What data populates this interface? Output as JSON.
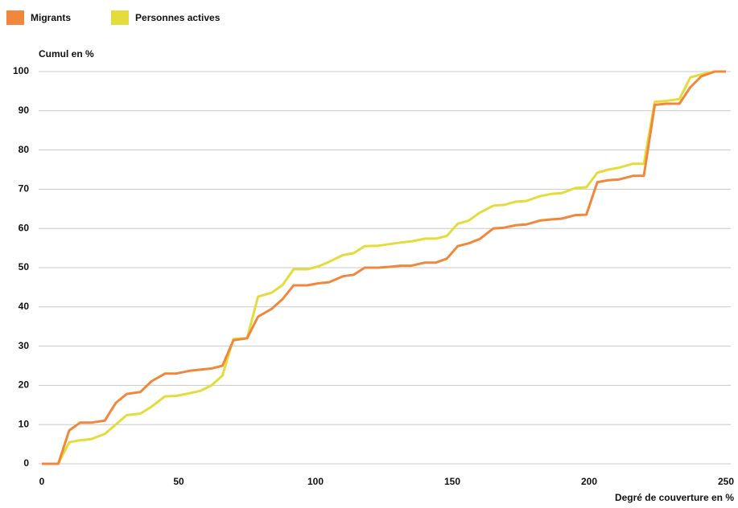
{
  "chart_data": {
    "type": "line",
    "ylabel": "Cumul en %",
    "xlabel": "Degré de couverture en %",
    "x": [
      0,
      6,
      10,
      14,
      18,
      23,
      27,
      31,
      36,
      40,
      45,
      49,
      54,
      58,
      62,
      66,
      70,
      75,
      79,
      84,
      88,
      92,
      97,
      101,
      105,
      110,
      114,
      118,
      123,
      127,
      131,
      135,
      140,
      144,
      148,
      152,
      156,
      160,
      165,
      169,
      173,
      177,
      182,
      186,
      190,
      195,
      199,
      203,
      207,
      211,
      216,
      220,
      224,
      228,
      233,
      237,
      241,
      246,
      250
    ],
    "series": [
      {
        "name": "Migrants",
        "color": "#f0873c",
        "values": [
          0,
          0,
          8.5,
          10.5,
          10.5,
          11,
          15.5,
          17.8,
          18.3,
          21,
          23,
          23,
          23.7,
          24,
          24.3,
          25,
          31.5,
          32,
          37.5,
          39.5,
          42,
          45.5,
          45.5,
          46,
          46.3,
          47.8,
          48.2,
          50,
          50,
          50.2,
          50.5,
          50.5,
          51.3,
          51.3,
          52.3,
          55.5,
          56.2,
          57.3,
          60,
          60.2,
          60.8,
          61,
          62,
          62.3,
          62.5,
          63.4,
          63.5,
          71.8,
          72.3,
          72.5,
          73.4,
          73.4,
          91.5,
          91.8,
          91.8,
          96,
          98.8,
          100,
          100
        ]
      },
      {
        "name": "Personnes actives",
        "color": "#e3dc3a",
        "values": [
          0,
          0,
          5.5,
          6,
          6.3,
          7.6,
          10,
          12.4,
          12.8,
          14.5,
          17.2,
          17.3,
          18,
          18.6,
          20,
          22.5,
          31.8,
          32,
          42.6,
          43.6,
          45.6,
          49.6,
          49.6,
          50.3,
          51.5,
          53.2,
          53.7,
          55.5,
          55.6,
          56,
          56.4,
          56.7,
          57.4,
          57.4,
          58.1,
          61.2,
          62,
          64,
          65.8,
          66,
          66.8,
          67,
          68.2,
          68.8,
          69,
          70.3,
          70.5,
          74.2,
          75,
          75.5,
          76.5,
          76.5,
          92.3,
          92.5,
          93,
          98.5,
          99.3,
          100,
          100
        ]
      }
    ],
    "xlim": [
      0,
      250
    ],
    "xticks": [
      0,
      50,
      100,
      150,
      200,
      250
    ],
    "ylim": [
      0,
      100
    ],
    "yticks": [
      0,
      10,
      20,
      30,
      40,
      50,
      60,
      70,
      80,
      90,
      100
    ],
    "grid": true,
    "legend": "top-left"
  }
}
